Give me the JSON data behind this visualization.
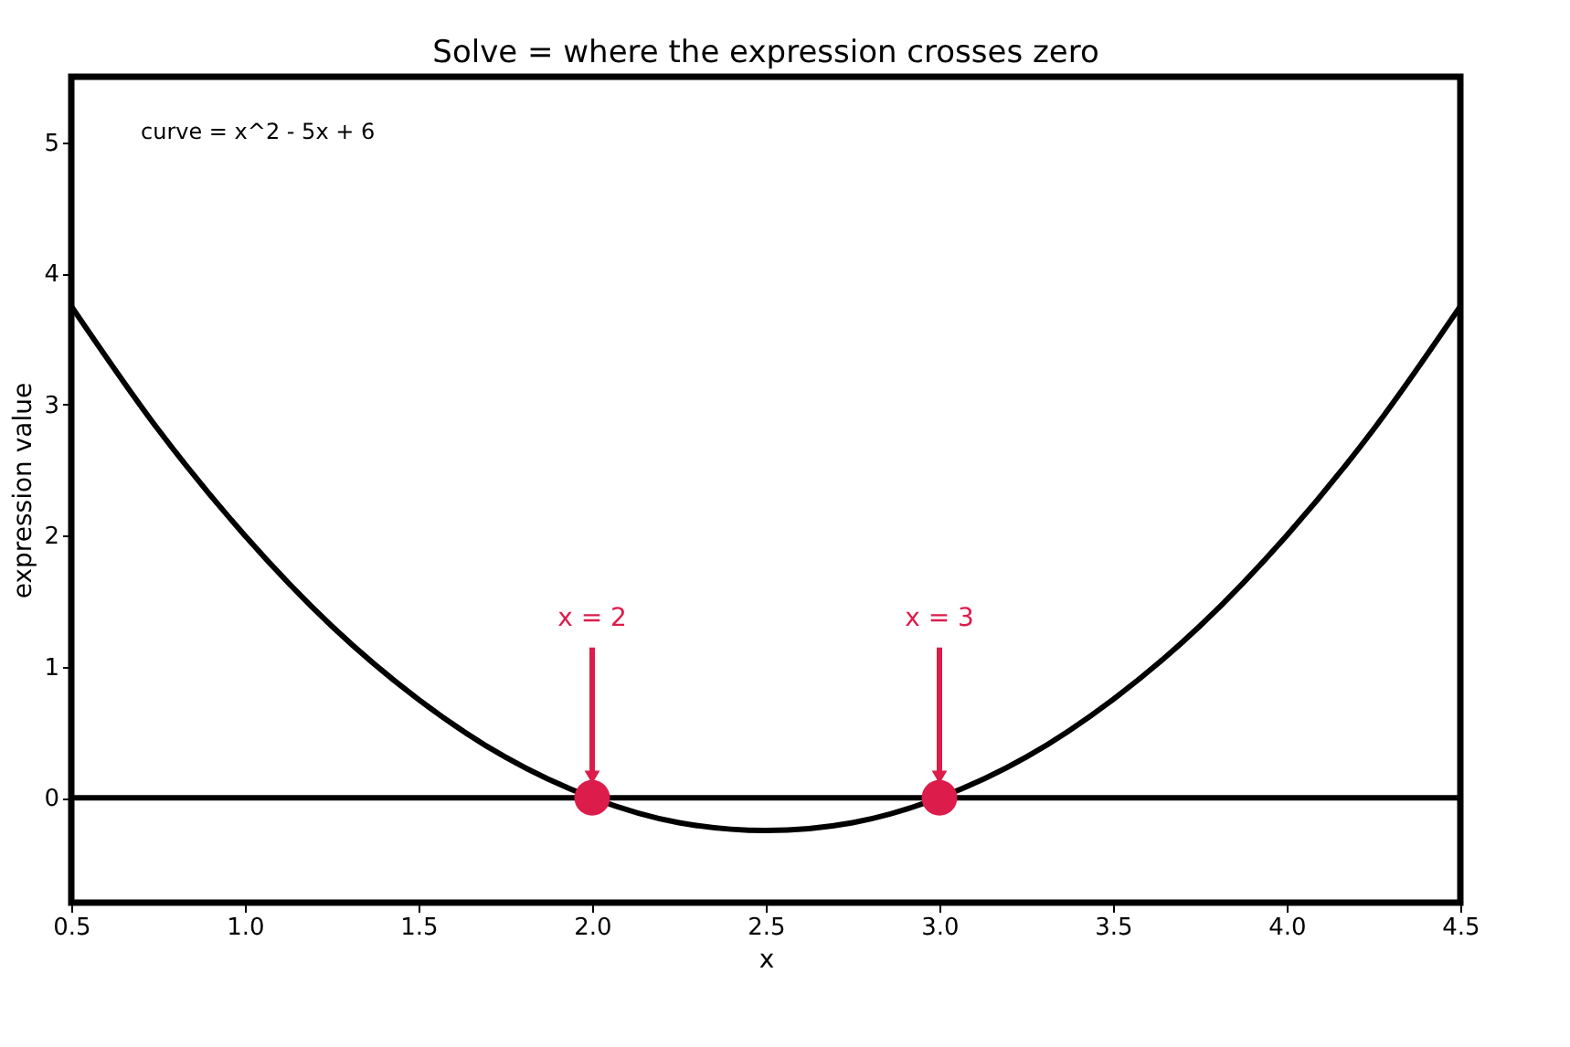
{
  "chart_data": {
    "type": "line",
    "title": "Solve = where the expression crosses zero",
    "xlabel": "x",
    "ylabel": "expression value",
    "xlim": [
      0.5,
      4.5
    ],
    "ylim": [
      -0.8,
      5.5
    ],
    "xticks": [
      {
        "value": 0.5,
        "label": "0.5"
      },
      {
        "value": 1,
        "label": "1.0"
      },
      {
        "value": 1.5,
        "label": "1.5"
      },
      {
        "value": 2,
        "label": "2.0"
      },
      {
        "value": 2.5,
        "label": "2.5"
      },
      {
        "value": 3,
        "label": "3.0"
      },
      {
        "value": 3.5,
        "label": "3.5"
      },
      {
        "value": 4,
        "label": "4.0"
      },
      {
        "value": 4.5,
        "label": "4.5"
      }
    ],
    "yticks": [
      0,
      1,
      2,
      3,
      4,
      5
    ],
    "grid": false,
    "series": [
      {
        "color": "#000000",
        "line_style": "solid",
        "x": [
          0.5,
          0.75,
          1,
          1.25,
          1.5,
          1.75,
          2,
          2.25,
          2.5,
          2.75,
          3,
          3.25,
          3.5,
          3.75,
          4,
          4.25,
          4.5
        ],
        "values": [
          3.75,
          2.81,
          2,
          1.31,
          0.75,
          0.31,
          0,
          -0.19,
          -0.25,
          -0.19,
          0,
          0.31,
          0.75,
          1.31,
          2,
          2.81,
          3.75
        ]
      },
      {
        "type": "scatter",
        "color": "#dc1c4b",
        "marker": "circle",
        "x": [
          2,
          3
        ],
        "values": [
          0,
          0
        ]
      }
    ],
    "ref_lines": [
      {
        "axis": "y",
        "value": 0,
        "color": "#000000"
      }
    ],
    "annotations": [
      "curve = x^2 - 5x + 6",
      {
        "text": "x = 2",
        "x": 2,
        "y": 0.1
      },
      {
        "text": "x = 3",
        "x": 3,
        "y": 0.1
      }
    ]
  }
}
